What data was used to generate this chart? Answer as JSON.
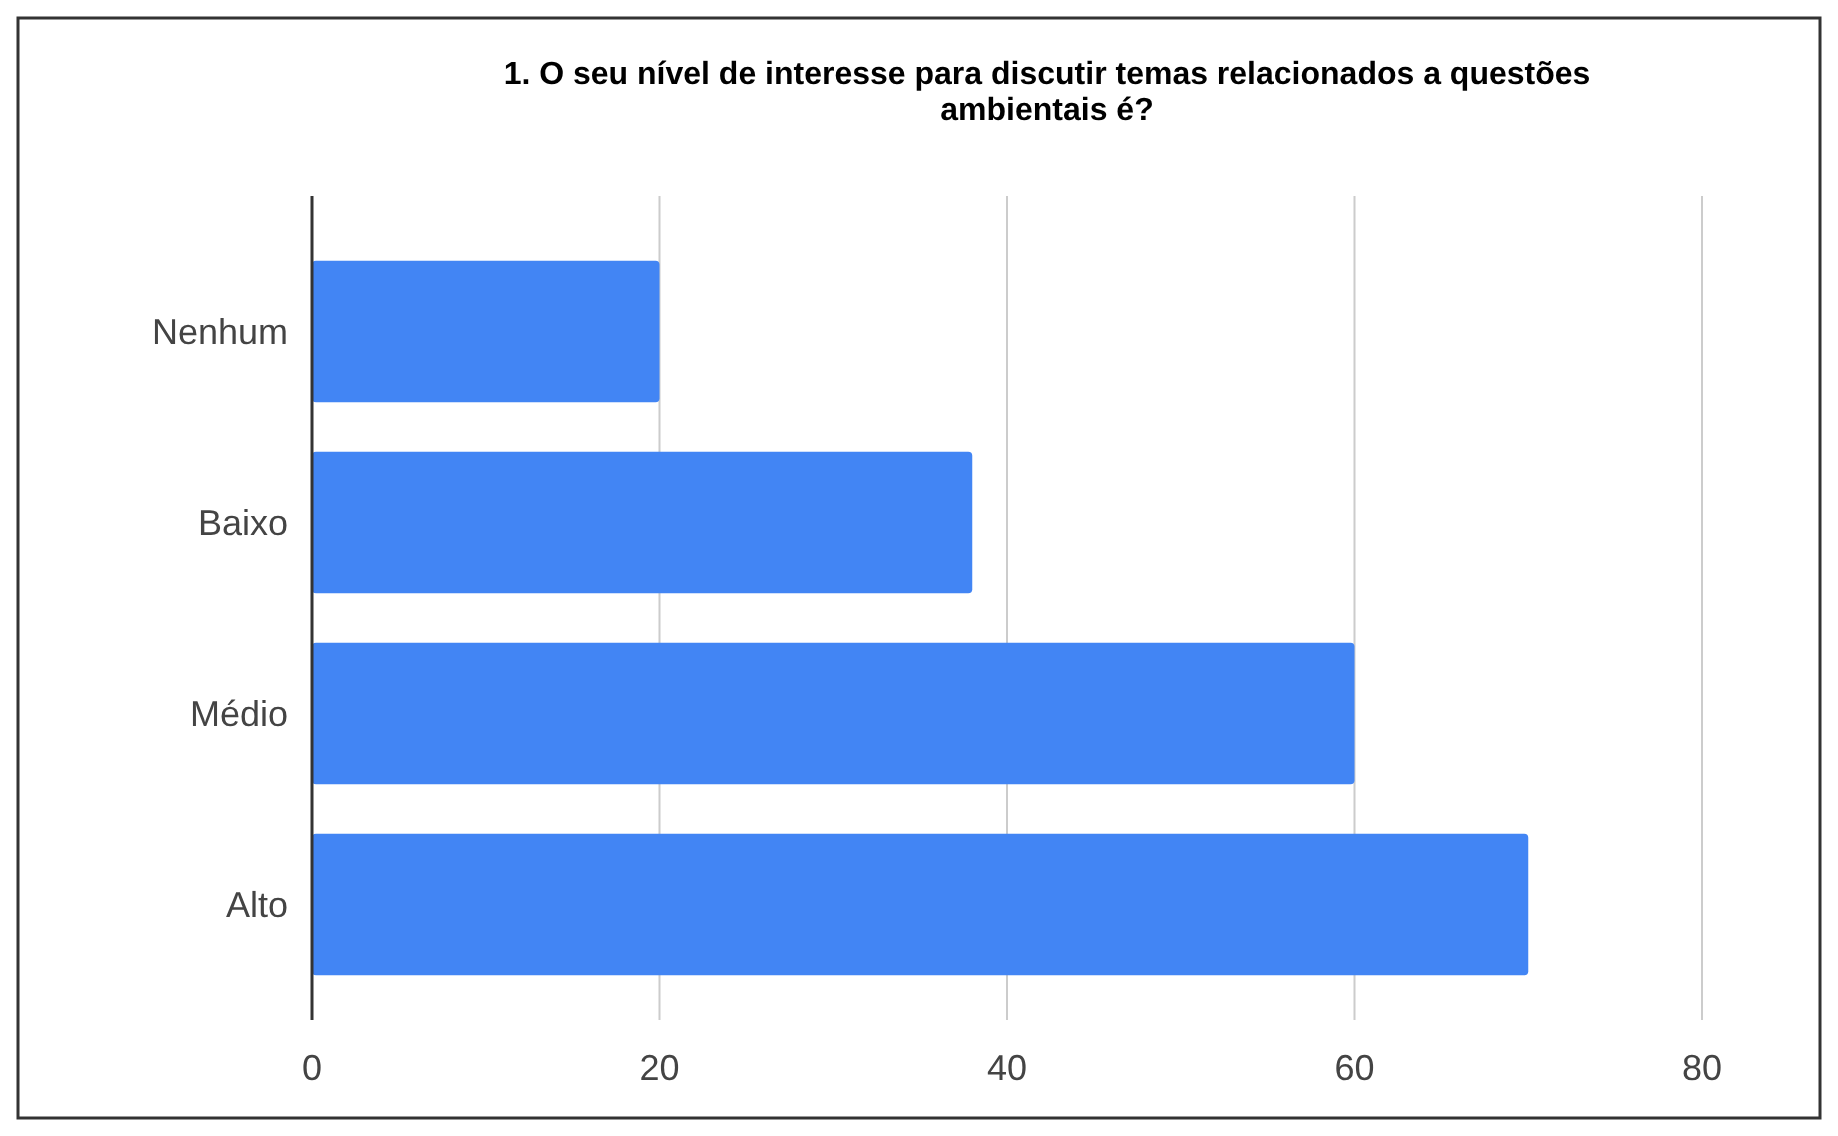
{
  "chart_data": {
    "type": "bar",
    "orientation": "horizontal",
    "title": "1. O seu nível de interesse para discutir temas relacionados a questões ambientais é?",
    "categories": [
      "Nenhum",
      "Baixo",
      "Médio",
      "Alto"
    ],
    "values": [
      20,
      38,
      60,
      70
    ],
    "color": "#4285f4",
    "xlim": [
      0,
      80
    ],
    "xticks": [
      0,
      20,
      40,
      60,
      80
    ],
    "grid": "x"
  }
}
